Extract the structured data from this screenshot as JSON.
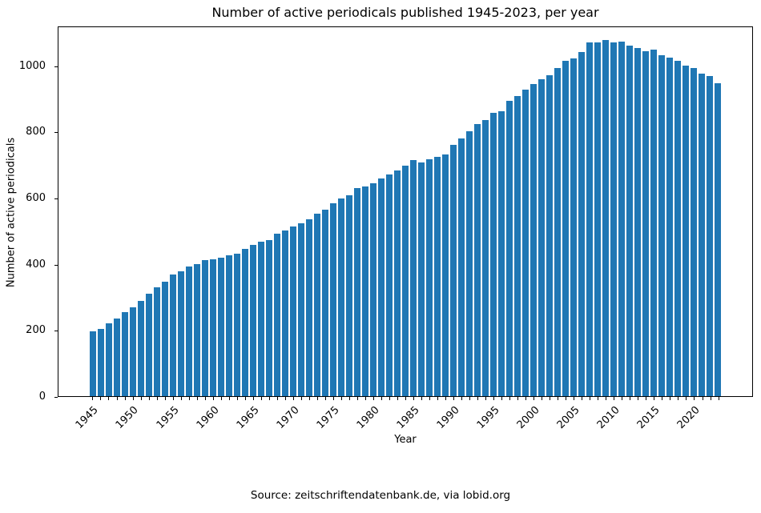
{
  "title": "Number of active periodicals published 1945-2023, per year",
  "x_axis_label": "Year",
  "y_axis_label": "Number of active periodicals",
  "source_caption": "Source: zeitschriftendatenbank.de, via lobid.org",
  "colors": {
    "bar": "#1f77b4",
    "axis": "#000000",
    "background": "#ffffff"
  },
  "chart_data": {
    "type": "bar",
    "title": "Number of active periodicals published 1945-2023, per year",
    "xlabel": "Year",
    "ylabel": "Number of active periodicals",
    "grid": false,
    "legend": null,
    "bar_width": 0.8,
    "xlim": [
      1940.66,
      2027.34
    ],
    "ylim": [
      0,
      1120
    ],
    "yticks": [
      0,
      200,
      400,
      600,
      800,
      1000
    ],
    "xticks": [
      1945,
      1950,
      1955,
      1960,
      1965,
      1970,
      1975,
      1980,
      1985,
      1990,
      1995,
      2000,
      2005,
      2010,
      2015,
      2020
    ],
    "x": [
      1945,
      1946,
      1947,
      1948,
      1949,
      1950,
      1951,
      1952,
      1953,
      1954,
      1955,
      1956,
      1957,
      1958,
      1959,
      1960,
      1961,
      1962,
      1963,
      1964,
      1965,
      1966,
      1967,
      1968,
      1969,
      1970,
      1971,
      1972,
      1973,
      1974,
      1975,
      1976,
      1977,
      1978,
      1979,
      1980,
      1981,
      1982,
      1983,
      1984,
      1985,
      1986,
      1987,
      1988,
      1989,
      1990,
      1991,
      1992,
      1993,
      1994,
      1995,
      1996,
      1997,
      1998,
      1999,
      2000,
      2001,
      2002,
      2003,
      2004,
      2005,
      2006,
      2007,
      2008,
      2009,
      2010,
      2011,
      2012,
      2013,
      2014,
      2015,
      2016,
      2017,
      2018,
      2019,
      2020,
      2021,
      2022,
      2023
    ],
    "values": [
      197,
      205,
      221,
      235,
      255,
      270,
      289,
      312,
      330,
      348,
      370,
      378,
      393,
      402,
      412,
      415,
      421,
      428,
      433,
      447,
      460,
      468,
      474,
      493,
      504,
      515,
      525,
      537,
      553,
      566,
      585,
      599,
      610,
      631,
      636,
      647,
      660,
      673,
      686,
      700,
      716,
      710,
      719,
      727,
      734,
      762,
      783,
      803,
      827,
      838,
      860,
      865,
      897,
      911,
      930,
      947,
      962,
      974,
      996,
      1018,
      1026,
      1044,
      1073,
      1073,
      1080,
      1073,
      1076,
      1064,
      1058,
      1047,
      1052,
      1035,
      1028,
      1018,
      1004,
      996,
      979,
      971,
      950
    ]
  }
}
